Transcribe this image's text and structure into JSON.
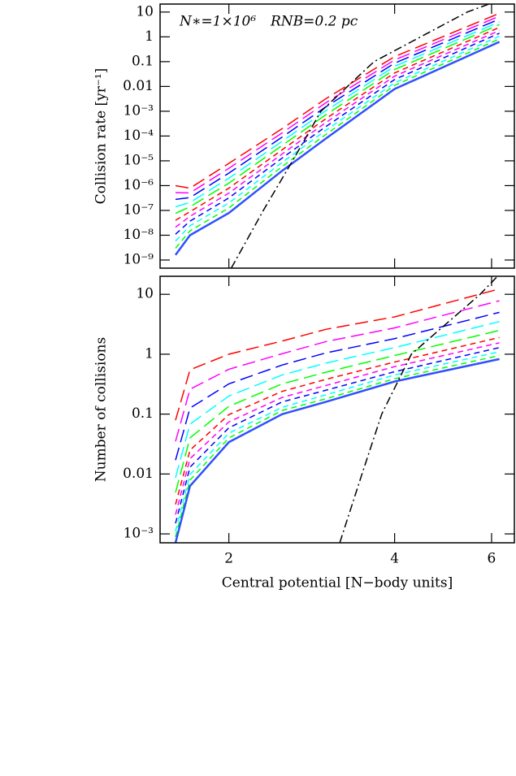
{
  "chart_data": [
    {
      "type": "line",
      "ylabel": "Collision rate [yr⁻¹]",
      "annotations": [
        "N∗=1×10⁶",
        "RNB=0.2 pc"
      ],
      "log_x": true,
      "log_y": true,
      "xlim": [
        1.5,
        6.6
      ],
      "xticks": [
        2,
        4,
        6
      ],
      "ylim": [
        4.7e-10,
        21
      ],
      "yticks": [
        10,
        1,
        0.1,
        0.01,
        {
          "value": 0.001,
          "label": "10⁻³"
        },
        {
          "value": 0.0001,
          "label": "10⁻⁴"
        },
        {
          "value": 1e-05,
          "label": "10⁻⁵"
        },
        {
          "value": 1e-06,
          "label": "10⁻⁶"
        },
        {
          "value": 1e-07,
          "label": "10⁻⁷"
        },
        {
          "value": 1e-08,
          "label": "10⁻⁸"
        },
        {
          "value": 1e-09,
          "label": "10⁻⁹"
        }
      ],
      "x": [
        1.6,
        1.7,
        2,
        2.5,
        3,
        4,
        6.2
      ],
      "series": [
        {
          "color": "#ff0000",
          "dash": "long",
          "values": [
            1e-06,
            7.9e-07,
            7.9e-06,
            0.0002,
            0.0032,
            0.16,
            8.9
          ]
        },
        {
          "color": "#ff00ff",
          "dash": "long",
          "values": [
            5.2e-07,
            5.1e-07,
            5e-06,
            0.000135,
            0.0022,
            0.117,
            6.8
          ]
        },
        {
          "color": "#0000ff",
          "dash": "long",
          "values": [
            2.8e-07,
            3.3e-07,
            3.2e-06,
            9.1e-05,
            0.0015,
            0.087,
            5.2
          ]
        },
        {
          "color": "#00ffff",
          "dash": "long",
          "values": [
            1.4e-07,
            2.1e-07,
            2e-06,
            6.2e-05,
            0.00105,
            0.065,
            4.0
          ]
        },
        {
          "color": "#00ff00",
          "dash": "long",
          "values": [
            7.6e-08,
            1.4e-07,
            1.26e-06,
            4.2e-05,
            0.00072,
            0.048,
            3.1
          ]
        },
        {
          "color": "#ff0000",
          "dash": "short",
          "values": [
            4e-08,
            8.9e-08,
            7.9e-07,
            2.8e-05,
            0.0005,
            0.035,
            2.4
          ]
        },
        {
          "color": "#ff00ff",
          "dash": "short",
          "values": [
            2.1e-08,
            5.8e-08,
            5e-07,
            1.9e-05,
            0.00035,
            0.026,
            1.8
          ]
        },
        {
          "color": "#0000ff",
          "dash": "short",
          "values": [
            1.1e-08,
            3.7e-08,
            3.2e-07,
            1.3e-05,
            0.00024,
            0.019,
            1.4
          ]
        },
        {
          "color": "#00ffff",
          "dash": "short",
          "values": [
            5.8e-09,
            2.4e-08,
            2e-07,
            8.7e-06,
            0.00017,
            0.014,
            1.07
          ]
        },
        {
          "color": "#00ff00",
          "dash": "short",
          "values": [
            3e-09,
            1.5e-08,
            1.26e-07,
            5.9e-06,
            0.000115,
            0.011,
            0.82
          ]
        },
        {
          "color": "#3050ff",
          "dash": "solid",
          "values": [
            1.6e-09,
            1e-08,
            7.9e-08,
            4e-06,
            7.9e-05,
            0.0079,
            0.63
          ]
        },
        {
          "color": "#000000",
          "dash": "dashdot",
          "x": [
            2.02,
            2.31,
            2.61,
            2.94,
            3.67,
            5.42,
            5.93
          ],
          "values": [
            4.7e-10,
            1e-07,
            1e-05,
            0.001,
            0.1,
            10,
            21
          ]
        }
      ]
    },
    {
      "type": "line",
      "ylabel": "Number of collisions",
      "xlabel": "Central potential [N−body units]",
      "log_x": true,
      "log_y": true,
      "xlim": [
        1.5,
        6.6
      ],
      "xticks": [
        2,
        4,
        6
      ],
      "ylim": [
        0.00071,
        20
      ],
      "yticks": [
        10,
        1,
        0.1,
        0.01,
        {
          "value": 0.001,
          "label": "10⁻³"
        }
      ],
      "x": [
        1.6,
        1.7,
        2,
        2.5,
        3,
        4,
        6.2
      ],
      "series": [
        {
          "color": "#ff0000",
          "dash": "long",
          "values": [
            0.079,
            0.55,
            1.0,
            1.66,
            2.6,
            4.2,
            12.3
          ]
        },
        {
          "color": "#ff00ff",
          "dash": "long",
          "values": [
            0.035,
            0.26,
            0.56,
            1.02,
            1.62,
            2.75,
            7.8
          ]
        },
        {
          "color": "#0000ff",
          "dash": "long",
          "values": [
            0.017,
            0.126,
            0.32,
            0.66,
            1.05,
            1.82,
            5.0
          ]
        },
        {
          "color": "#00ffff",
          "dash": "long",
          "values": [
            0.0087,
            0.068,
            0.2,
            0.45,
            0.71,
            1.29,
            3.5
          ]
        },
        {
          "color": "#00ff00",
          "dash": "long",
          "values": [
            0.0049,
            0.04,
            0.135,
            0.32,
            0.5,
            0.95,
            2.5
          ]
        },
        {
          "color": "#ff0000",
          "dash": "short",
          "values": [
            0.0031,
            0.025,
            0.098,
            0.24,
            0.38,
            0.74,
            1.9
          ]
        },
        {
          "color": "#ff00ff",
          "dash": "short",
          "values": [
            0.0021,
            0.018,
            0.074,
            0.19,
            0.3,
            0.62,
            1.55
          ]
        },
        {
          "color": "#0000ff",
          "dash": "short",
          "values": [
            0.0015,
            0.013,
            0.059,
            0.16,
            0.25,
            0.51,
            1.29
          ]
        },
        {
          "color": "#00ffff",
          "dash": "short",
          "values": [
            0.0011,
            0.0098,
            0.048,
            0.13,
            0.21,
            0.45,
            1.1
          ]
        },
        {
          "color": "#00ff00",
          "dash": "short",
          "values": [
            0.00089,
            0.0079,
            0.04,
            0.115,
            0.18,
            0.39,
            0.95
          ]
        },
        {
          "color": "#3050ff",
          "dash": "solid",
          "values": [
            0.00071,
            0.0063,
            0.034,
            0.1,
            0.16,
            0.35,
            0.83
          ]
        },
        {
          "color": "#000000",
          "dash": "dashdot",
          "x": [
            3.18,
            3.49,
            3.79,
            4.29,
            5.72,
            6.15
          ],
          "values": [
            0.00071,
            0.01,
            0.1,
            1,
            10,
            20
          ]
        }
      ]
    }
  ]
}
